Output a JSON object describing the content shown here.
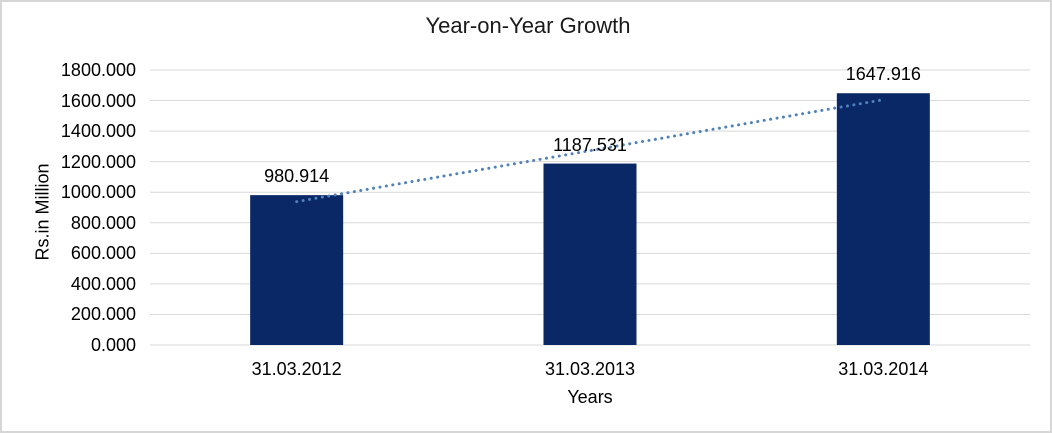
{
  "frame": {
    "border_color": "#D6D6D6",
    "background_color": "#FFFFFF"
  },
  "chart_data": {
    "type": "bar",
    "title": "Year-on-Year Growth",
    "xlabel": "Years",
    "ylabel": "Rs.in Million",
    "categories": [
      "31.03.2012",
      "31.03.2013",
      "31.03.2014"
    ],
    "values": [
      980.914,
      1187.531,
      1647.916
    ],
    "data_labels": [
      "980.914",
      "1187.531",
      "1647.916"
    ],
    "ylim": [
      0,
      1800
    ],
    "ytick_step": 200,
    "ytick_labels": [
      "0.000",
      "200.000",
      "400.000",
      "600.000",
      "800.000",
      "1000.000",
      "1200.000",
      "1400.000",
      "1600.000",
      "1800.000"
    ],
    "grid": true,
    "legend": "none",
    "bar_color": "#0A2766",
    "gridline_color": "#D9D9D9",
    "text_color": "#000000",
    "trendline": {
      "type": "linear",
      "style": "dotted",
      "color": "#4F81BD"
    }
  }
}
